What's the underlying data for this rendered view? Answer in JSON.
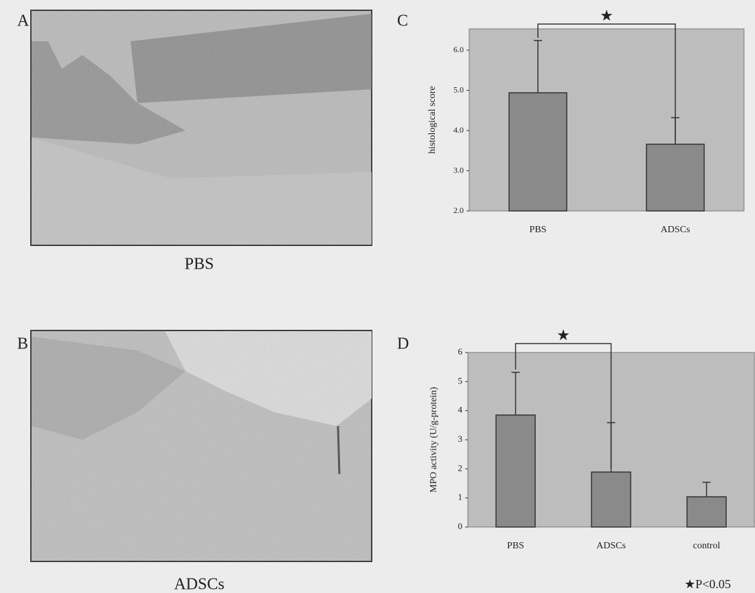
{
  "panels": [
    {
      "label": "A",
      "caption": "PBS"
    },
    {
      "label": "B",
      "caption": "ADSCs"
    }
  ],
  "chart_data": [
    {
      "type": "bar",
      "label": "C",
      "ylabel": "histological score",
      "categories": [
        "PBS",
        "ADSCs"
      ],
      "values": [
        4.94,
        3.66
      ],
      "errors": [
        1.3,
        0.66
      ],
      "color": "#8a8a8a",
      "ylim": [
        2,
        6.53
      ],
      "yticks": [
        {
          "value": 2,
          "label": "2.0"
        },
        {
          "value": 3,
          "label": "3.0"
        },
        {
          "value": 4,
          "label": "4.0"
        },
        {
          "value": 5,
          "label": "5.0"
        },
        {
          "value": 6,
          "label": "6.0"
        }
      ],
      "annotation": "★"
    },
    {
      "type": "bar",
      "label": "D",
      "ylabel": "MPO activity (U/g-protein)",
      "categories": [
        "PBS",
        "ADSCs",
        "control"
      ],
      "values": [
        3.85,
        1.89,
        1.04
      ],
      "errors": [
        1.47,
        1.7,
        0.5
      ],
      "color": "#8a8a8a",
      "ylim": [
        0,
        6
      ],
      "yticks": [
        0,
        1,
        2,
        3,
        4,
        5,
        6
      ],
      "annotation": "★"
    }
  ],
  "footnote": "★P<0.05"
}
